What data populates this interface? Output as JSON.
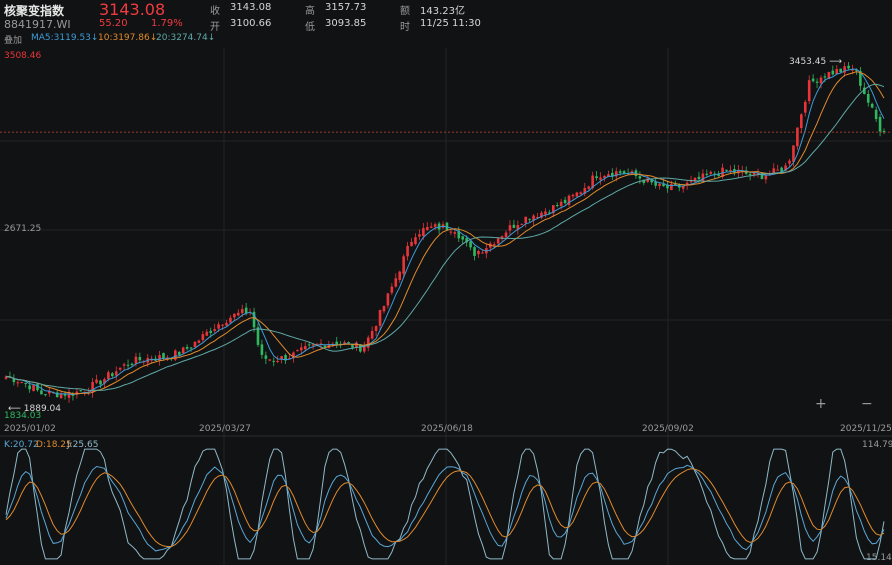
{
  "header": {
    "name": "核聚变指数",
    "code": "8841917.WI",
    "price": "3143.08",
    "change": "55.20",
    "change_pct": "1.79%",
    "close_label": "收",
    "close_value": "3143.08",
    "open_label": "开",
    "open_value": "3100.66",
    "high_label": "高",
    "high_value": "3157.73",
    "low_label": "低",
    "low_value": "3093.85",
    "amount_label": "额",
    "amount_value": "143.23亿",
    "time_label": "时",
    "time_value": "11/25 11:30",
    "overlay_label": "叠加",
    "ma5": "MA5:3119.53↓",
    "ma10": "10:3197.86↓",
    "ma20": "20:3274.74↓"
  },
  "colors": {
    "up": "#e8353a",
    "down": "#2fb85f",
    "ma5": "#3d9bd6",
    "ma10": "#e08a2e",
    "ma20": "#5fa9a8",
    "k": "#5aa7d6",
    "d": "#e08a2e",
    "j": "#8fb9c9",
    "bg": "#111213",
    "grid": "#232425"
  },
  "zoom_in_icon": "plus-icon",
  "zoom_out_icon": "minus-icon",
  "chart_data": [
    {
      "type": "candlestick",
      "price_axis_labels": [
        "3508.46",
        "2671.25",
        "1834.03"
      ],
      "ylim": [
        1834.03,
        3508.46
      ],
      "x_tick_labels": [
        "2025/01/02",
        "2025/03/27",
        "2025/06/18",
        "2025/09/02",
        "2025/11/25"
      ],
      "annotations": {
        "high": "3453.45",
        "low": "1889.04"
      },
      "last_price": 3143.08,
      "trend_keypoints": [
        [
          "2025/01/02",
          2000
        ],
        [
          "2025/01/15",
          1900
        ],
        [
          "2025/02/10",
          2000
        ],
        [
          "2025/03/10",
          2150
        ],
        [
          "2025/04/03",
          2300
        ],
        [
          "2025/04/07",
          2100
        ],
        [
          "2025/05/15",
          2150
        ],
        [
          "2025/06/03",
          2650
        ],
        [
          "2025/06/18",
          2700
        ],
        [
          "2025/06/25",
          2600
        ],
        [
          "2025/07/20",
          2750
        ],
        [
          "2025/08/10",
          2950
        ],
        [
          "2025/09/02",
          2900
        ],
        [
          "2025/10/08",
          2950
        ],
        [
          "2025/10/20",
          3000
        ],
        [
          "2025/10/28",
          3350
        ],
        [
          "2025/11/14",
          3453
        ],
        [
          "2025/11/25",
          3143
        ]
      ]
    },
    {
      "type": "line",
      "indicator": "KDJ",
      "k_label": "K:20.72",
      "d_label": "D:18.25",
      "j_label": "J:25.65",
      "ylim_labels": [
        "114.79",
        "15.14"
      ],
      "ylim": [
        15.14,
        114.79
      ]
    }
  ]
}
